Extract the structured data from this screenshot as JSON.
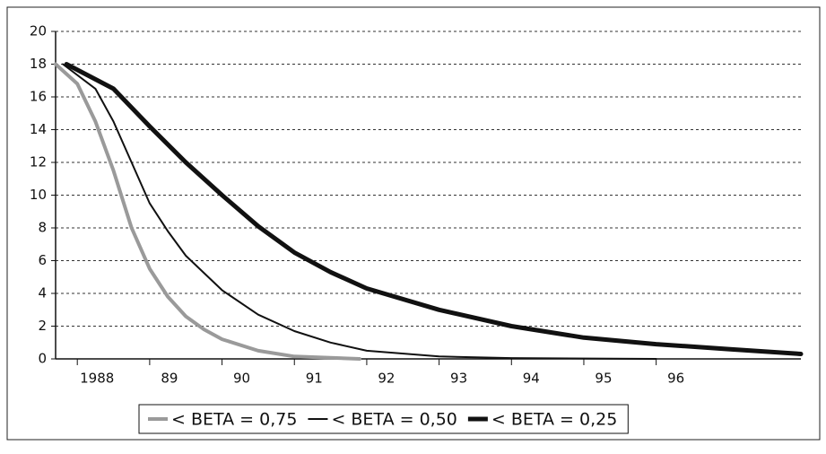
{
  "chart_data": {
    "type": "line",
    "xlim": [
      1987.7,
      1998
    ],
    "xticks": [
      {
        "value": 1988,
        "label": "1988"
      },
      1989,
      1990,
      1991,
      1992,
      1993,
      1994,
      1995,
      1996
    ],
    "xtick_labels": [
      "1988",
      "89",
      "90",
      "91",
      "92",
      "93",
      "94",
      "95",
      "96"
    ],
    "ylim": [
      0,
      20
    ],
    "yticks": [
      0,
      2,
      4,
      6,
      8,
      10,
      12,
      14,
      16,
      18,
      20
    ],
    "grid": true,
    "legend": "bottom",
    "series": [
      {
        "name": "< BETA = 0,75",
        "color": "#9a9a9a",
        "width": 4,
        "x": [
          1987.7,
          1988.0,
          1988.25,
          1988.5,
          1988.75,
          1989.0,
          1989.25,
          1989.5,
          1989.75,
          1990.0,
          1990.5,
          1991.0,
          1991.9
        ],
        "values": [
          18,
          16.8,
          14.5,
          11.5,
          8,
          5.5,
          3.8,
          2.6,
          1.8,
          1.2,
          0.5,
          0.15,
          0
        ]
      },
      {
        "name": "< BETA = 0,50",
        "color": "#111111",
        "width": 2,
        "x": [
          1987.8,
          1988.25,
          1988.5,
          1988.75,
          1989.0,
          1989.25,
          1989.5,
          1990.0,
          1990.5,
          1991.0,
          1991.5,
          1992.0,
          1993.0,
          1994.0,
          1996.0
        ],
        "values": [
          18,
          16.5,
          14.5,
          12,
          9.5,
          7.8,
          6.3,
          4.2,
          2.7,
          1.7,
          1.0,
          0.5,
          0.15,
          0.05,
          0
        ]
      },
      {
        "name": "< BETA = 0,25",
        "color": "#111111",
        "width": 5,
        "x": [
          1987.85,
          1988.5,
          1989.0,
          1989.5,
          1990.0,
          1990.5,
          1991.0,
          1991.5,
          1992.0,
          1993.0,
          1994.0,
          1995.0,
          1996.0,
          1997.0,
          1998.0
        ],
        "values": [
          18,
          16.5,
          14.2,
          12,
          10,
          8.1,
          6.5,
          5.3,
          4.3,
          3.0,
          2.0,
          1.3,
          0.9,
          0.6,
          0.3
        ]
      }
    ]
  }
}
